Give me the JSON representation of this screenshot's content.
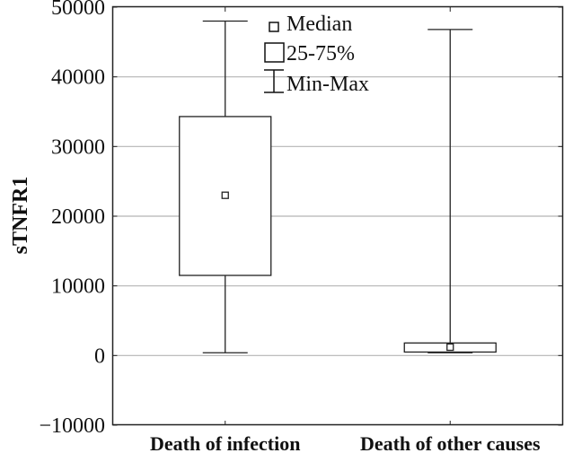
{
  "chart_data": {
    "type": "box",
    "title": "",
    "xlabel": "",
    "ylabel": "sTNFR1",
    "ylim": [
      -10000,
      50000
    ],
    "yticks": [
      -10000,
      0,
      10000,
      20000,
      30000,
      40000,
      50000
    ],
    "ytick_labels": [
      "−10000",
      "0",
      "10000",
      "20000",
      "30000",
      "40000",
      "50000"
    ],
    "grid": true,
    "categories": [
      "Death of infection",
      "Death of other causes"
    ],
    "series": [
      {
        "name": "Death of infection",
        "min": 400,
        "q1": 11500,
        "median": 23000,
        "q3": 34300,
        "max": 48000
      },
      {
        "name": "Death of other causes",
        "min": 400,
        "q1": 500,
        "median": 1200,
        "q3": 1800,
        "max": 46800
      }
    ],
    "legend": {
      "placement": "top-center",
      "entries": [
        "Median",
        "25-75%",
        "Min-Max"
      ]
    }
  }
}
